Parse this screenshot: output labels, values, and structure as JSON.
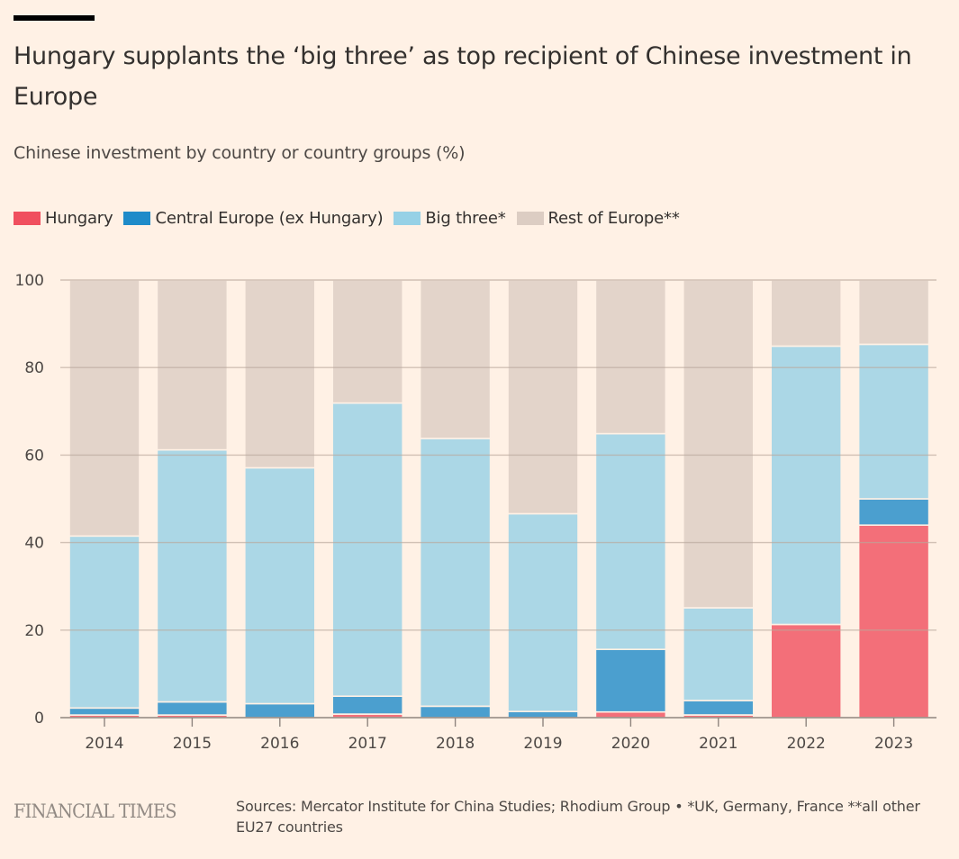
{
  "header": {
    "title": "Hungary supplants the ‘big three’ as top recipient of Chinese investment in Europe",
    "subtitle": "Chinese investment by country or country groups (%)"
  },
  "legend": [
    {
      "label": "Hungary",
      "color": "#f04f5e"
    },
    {
      "label": "Central Europe (ex Hungary)",
      "color": "#1e8bc9"
    },
    {
      "label": "Big three*",
      "color": "#96d1e6"
    },
    {
      "label": "Rest of Europe**",
      "color": "#dccdc3"
    }
  ],
  "footer": {
    "logo": "FINANCIAL TIMES",
    "source": "Sources: Mercator Institute for China Studies; Rhodium Group • *UK, Germany, France **all other EU27 countries"
  },
  "chart_data": {
    "type": "bar",
    "stacked": true,
    "title": "Hungary supplants the ‘big three’ as top recipient of Chinese investment in Europe",
    "subtitle": "Chinese investment by country or country groups (%)",
    "xlabel": "",
    "ylabel": "",
    "ylim": [
      0,
      100
    ],
    "yticks": [
      0,
      20,
      40,
      60,
      80,
      100
    ],
    "grid": true,
    "legend_position": "top-left",
    "categories": [
      "2014",
      "2015",
      "2016",
      "2017",
      "2018",
      "2019",
      "2020",
      "2021",
      "2022",
      "2023"
    ],
    "series": [
      {
        "name": "Hungary",
        "color": "#f04f5e",
        "values": [
          0.6,
          0.6,
          0.0,
          0.8,
          0.0,
          0.0,
          1.3,
          0.6,
          21.3,
          44.0
        ]
      },
      {
        "name": "Central Europe (ex Hungary)",
        "color": "#1e8bc9",
        "values": [
          1.6,
          3.0,
          3.2,
          4.1,
          2.6,
          1.4,
          14.3,
          3.3,
          0.0,
          6.0
        ]
      },
      {
        "name": "Big three*",
        "color": "#96d1e6",
        "values": [
          39.3,
          57.6,
          53.9,
          67.0,
          61.2,
          45.2,
          49.3,
          21.2,
          63.6,
          35.3
        ]
      },
      {
        "name": "Rest of Europe**",
        "color": "#dccdc3",
        "values": [
          58.5,
          38.8,
          42.9,
          28.1,
          36.2,
          53.4,
          35.1,
          74.9,
          15.1,
          14.7
        ]
      }
    ]
  }
}
